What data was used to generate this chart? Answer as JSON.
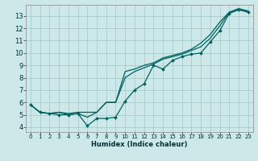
{
  "xlabel": "Humidex (Indice chaleur)",
  "bg_color": "#cce8e8",
  "grid_color": "#aacccc",
  "line_color": "#006060",
  "xlim": [
    -0.5,
    23.5
  ],
  "ylim": [
    3.6,
    13.9
  ],
  "yticks": [
    4,
    5,
    6,
    7,
    8,
    9,
    10,
    11,
    12,
    13
  ],
  "xticks": [
    0,
    1,
    2,
    3,
    4,
    5,
    6,
    7,
    8,
    9,
    10,
    11,
    12,
    13,
    14,
    15,
    16,
    17,
    18,
    19,
    20,
    21,
    22,
    23
  ],
  "line1_x": [
    0,
    1,
    2,
    3,
    4,
    5,
    6,
    7,
    8,
    9,
    10,
    11,
    12,
    13,
    14,
    15,
    16,
    17,
    18,
    19,
    20,
    21,
    22,
    23
  ],
  "line1_y": [
    5.8,
    5.2,
    5.1,
    5.0,
    5.0,
    5.1,
    4.1,
    4.7,
    4.7,
    4.8,
    6.1,
    7.0,
    7.5,
    9.0,
    8.7,
    9.4,
    9.7,
    9.9,
    10.0,
    10.9,
    11.8,
    13.2,
    13.5,
    13.3
  ],
  "line2_x": [
    0,
    1,
    2,
    3,
    4,
    5,
    6,
    7,
    8,
    9,
    10,
    11,
    12,
    13,
    14,
    15,
    16,
    17,
    18,
    19,
    20,
    21,
    22,
    23
  ],
  "line2_y": [
    5.8,
    5.2,
    5.1,
    5.2,
    5.1,
    5.2,
    5.2,
    5.2,
    6.0,
    6.0,
    8.0,
    8.5,
    8.8,
    9.1,
    9.5,
    9.7,
    9.9,
    10.2,
    10.5,
    11.2,
    12.2,
    13.3,
    13.5,
    13.4
  ],
  "line3_x": [
    0,
    1,
    2,
    3,
    4,
    5,
    6,
    7,
    8,
    9,
    10,
    11,
    12,
    13,
    14,
    15,
    16,
    17,
    18,
    19,
    20,
    21,
    22,
    23
  ],
  "line3_y": [
    5.8,
    5.2,
    5.1,
    5.2,
    5.0,
    5.1,
    4.8,
    5.2,
    6.0,
    6.0,
    8.5,
    8.7,
    9.0,
    9.2,
    9.6,
    9.8,
    10.0,
    10.3,
    10.8,
    11.5,
    12.5,
    13.3,
    13.6,
    13.4
  ],
  "xlabel_fontsize": 6.0,
  "tick_fontsize_x": 5.0,
  "tick_fontsize_y": 6.0,
  "linewidth": 0.9,
  "marker_size": 2.0
}
